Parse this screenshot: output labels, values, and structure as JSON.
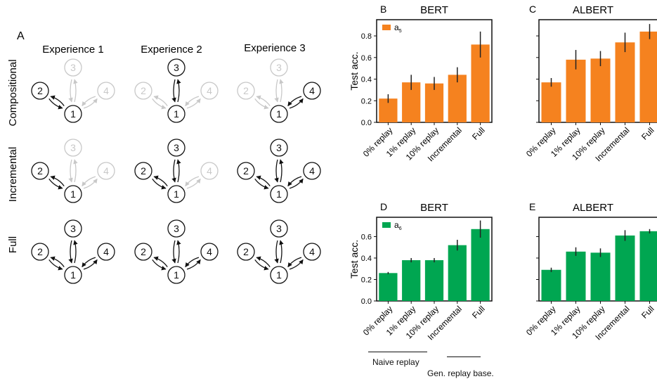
{
  "panel_a": {
    "letter": "A",
    "columns": [
      "Experience 1",
      "Experience 2",
      "Experience 3"
    ],
    "rows": [
      "Compositional",
      "Incremental",
      "Full"
    ],
    "node_labels": [
      "1",
      "2",
      "3",
      "4"
    ],
    "active_nodes": [
      [
        [
          2
        ],
        [
          3
        ],
        [
          4
        ]
      ],
      [
        [
          2
        ],
        [
          2,
          3
        ],
        [
          2,
          3,
          4
        ]
      ],
      [
        [
          2,
          3,
          4
        ],
        [
          2,
          3,
          4
        ],
        [
          2,
          3,
          4
        ]
      ]
    ],
    "colors": {
      "active": "#111111",
      "inactive": "#c8c8c8"
    }
  },
  "chart_data": [
    {
      "type": "bar",
      "letter": "B",
      "title": "BERT",
      "legend": "a5",
      "legend_main": "a",
      "legend_sub": "5",
      "color": "#f5821f",
      "ylabel": "Test acc.",
      "ylim": [
        0,
        0.95
      ],
      "yticks": [
        "0.0",
        "0.2",
        "0.4",
        "0.6",
        "0.8"
      ],
      "categories": [
        "0% replay",
        "1% replay",
        "10% replay",
        "Incremental",
        "Full"
      ],
      "values": [
        0.22,
        0.37,
        0.36,
        0.44,
        0.72
      ],
      "errors": [
        0.04,
        0.07,
        0.06,
        0.07,
        0.12
      ]
    },
    {
      "type": "bar",
      "letter": "C",
      "title": "ALBERT",
      "color": "#f5821f",
      "ylim": [
        0,
        0.95
      ],
      "categories": [
        "0% replay",
        "1% replay",
        "10% replay",
        "Incremental",
        "Full"
      ],
      "values": [
        0.37,
        0.58,
        0.59,
        0.74,
        0.84
      ],
      "errors": [
        0.04,
        0.09,
        0.07,
        0.09,
        0.07
      ]
    },
    {
      "type": "bar",
      "letter": "D",
      "title": "BERT",
      "legend": "a6",
      "legend_main": "a",
      "legend_sub": "6",
      "color": "#00a651",
      "ylabel": "Test acc.",
      "ylim": [
        0,
        0.78
      ],
      "yticks": [
        "0.0",
        "0.2",
        "0.4",
        "0.6"
      ],
      "categories": [
        "0% replay",
        "1% replay",
        "10% replay",
        "Incremental",
        "Full"
      ],
      "values": [
        0.26,
        0.38,
        0.38,
        0.52,
        0.67
      ],
      "errors": [
        0.01,
        0.02,
        0.02,
        0.05,
        0.08
      ]
    },
    {
      "type": "bar",
      "letter": "E",
      "title": "ALBERT",
      "color": "#00a651",
      "ylim": [
        0,
        0.78
      ],
      "categories": [
        "0% replay",
        "1% replay",
        "10% replay",
        "Incremental",
        "Full"
      ],
      "values": [
        0.29,
        0.46,
        0.45,
        0.61,
        0.65
      ],
      "errors": [
        0.02,
        0.04,
        0.04,
        0.05,
        0.02
      ]
    }
  ],
  "annotations": {
    "naive_replay": "Naive replay",
    "gen_replay": "Gen. replay base."
  }
}
